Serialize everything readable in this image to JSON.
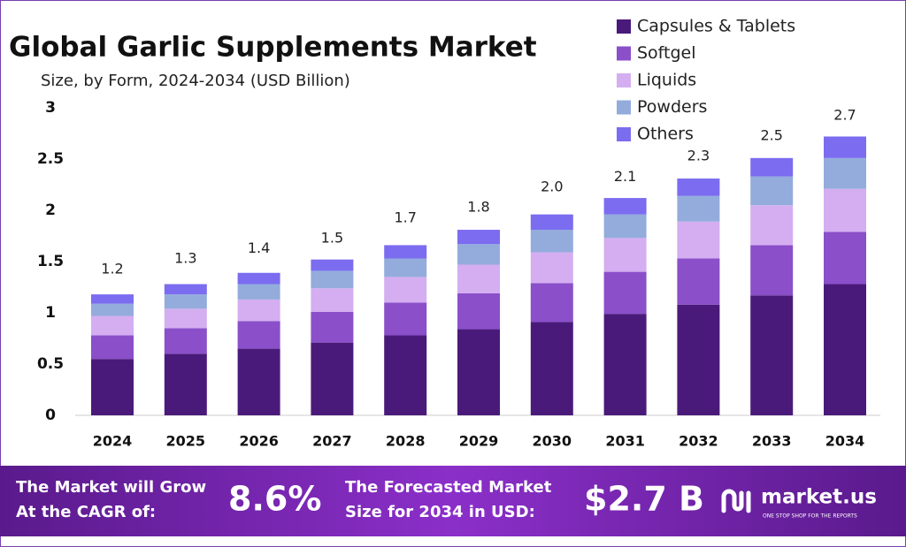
{
  "chart_data": {
    "type": "stacked_bar",
    "title": "Global Garlic Supplements Market",
    "subtitle": "Size, by Form, 2024-2034 (USD Billion)",
    "categories": [
      "2024",
      "2025",
      "2026",
      "2027",
      "2028",
      "2029",
      "2030",
      "2031",
      "2032",
      "2033",
      "2034"
    ],
    "series": [
      {
        "name": "Capsules & Tablets",
        "color": "#4a1a7a",
        "values": [
          0.55,
          0.6,
          0.65,
          0.71,
          0.78,
          0.84,
          0.91,
          0.99,
          1.08,
          1.17,
          1.28
        ]
      },
      {
        "name": "Softgel",
        "color": "#8a4fc9",
        "values": [
          0.23,
          0.25,
          0.27,
          0.3,
          0.32,
          0.35,
          0.38,
          0.41,
          0.45,
          0.49,
          0.51
        ]
      },
      {
        "name": "Liquids",
        "color": "#d4aef0",
        "values": [
          0.19,
          0.19,
          0.21,
          0.23,
          0.25,
          0.28,
          0.3,
          0.33,
          0.36,
          0.39,
          0.42
        ]
      },
      {
        "name": "Powders",
        "color": "#93acdc",
        "values": [
          0.12,
          0.14,
          0.15,
          0.17,
          0.18,
          0.2,
          0.22,
          0.23,
          0.25,
          0.28,
          0.3
        ]
      },
      {
        "name": "Others",
        "color": "#7b6cf0",
        "values": [
          0.09,
          0.1,
          0.11,
          0.11,
          0.13,
          0.14,
          0.15,
          0.16,
          0.17,
          0.18,
          0.21
        ]
      }
    ],
    "totals": {
      "values": [
        1.2,
        1.3,
        1.4,
        1.5,
        1.7,
        1.8,
        2.0,
        2.1,
        2.3,
        2.5,
        2.7
      ],
      "value_labels": [
        "1.2",
        "1.3",
        "1.4",
        "1.5",
        "1.7",
        "1.8",
        "2.0",
        "2.1",
        "2.3",
        "2.5",
        "2.7"
      ]
    },
    "ylim": [
      0,
      3
    ],
    "yticks": [
      0,
      0.5,
      1,
      1.5,
      2,
      2.5,
      3
    ],
    "grid": false,
    "legend": "top-right"
  },
  "footer": {
    "cagr_text": [
      "The Market will Grow",
      "At the CAGR of:"
    ],
    "cagr": "8.6%",
    "forecast_text": [
      "The Forecasted Market",
      "Size for 2034 in USD:"
    ],
    "forecast": "$2.7 B",
    "brand": "market.us",
    "tagline": "ONE STOP SHOP FOR THE REPORTS"
  }
}
